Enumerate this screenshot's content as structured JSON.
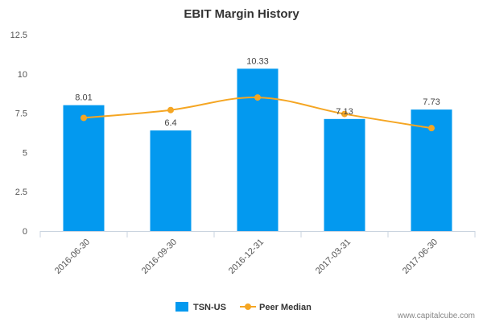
{
  "chart_data": {
    "type": "bar",
    "title": "EBIT Margin History",
    "categories": [
      "2016-06-30",
      "2016-09-30",
      "2016-12-31",
      "2017-03-31",
      "2017-06-30"
    ],
    "series": [
      {
        "name": "TSN-US",
        "kind": "bar",
        "color": "#0399ef",
        "values": [
          8.01,
          6.4,
          10.33,
          7.13,
          7.73
        ],
        "data_labels": [
          "8.01",
          "6.4",
          "10.33",
          "7.13",
          "7.73"
        ]
      },
      {
        "name": "Peer Median",
        "kind": "line",
        "color": "#f5a623",
        "values": [
          7.2,
          7.7,
          8.5,
          7.45,
          6.55
        ]
      }
    ],
    "ylim": [
      0,
      12.5
    ],
    "yticks": [
      "0",
      "2.5",
      "5",
      "7.5",
      "10",
      "12.5"
    ],
    "ytick_values": [
      0,
      2.5,
      5,
      7.5,
      10,
      12.5
    ],
    "xlabel": "",
    "ylabel": "",
    "grid": false,
    "legend": "bottom-center"
  },
  "credit": "www.capitalcube.com"
}
